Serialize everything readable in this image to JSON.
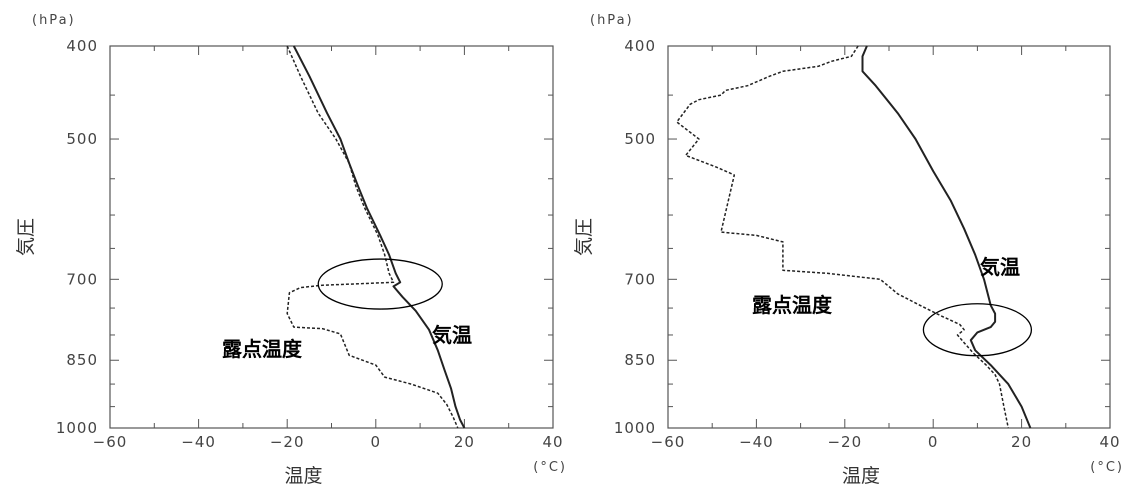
{
  "chart_data": [
    {
      "type": "line",
      "xlabel": "温度",
      "xunit": "(°C)",
      "ylabel": "気圧",
      "yunit": "(hPa)",
      "xlim": [
        -60,
        40
      ],
      "ylim": [
        1000,
        400
      ],
      "x_ticks": [
        -60,
        -40,
        -20,
        0,
        20,
        40
      ],
      "y_ticks": [
        400,
        500,
        700,
        850,
        1000
      ],
      "y_scale": "log",
      "grid": false,
      "annotations": [
        "気温",
        "露点温度"
      ],
      "circle": {
        "center_t": 1,
        "center_p": 708
      },
      "series": [
        {
          "style": "solid",
          "points": [
            [
              -18.5,
              400
            ],
            [
              -15,
              430
            ],
            [
              -11,
              470
            ],
            [
              -8,
              500
            ],
            [
              -6,
              530
            ],
            [
              -4,
              560
            ],
            [
              -2,
              590
            ],
            [
              1,
              630
            ],
            [
              3,
              660
            ],
            [
              4.5,
              690
            ],
            [
              5.5,
              705
            ],
            [
              4,
              712
            ],
            [
              6,
              730
            ],
            [
              9,
              755
            ],
            [
              12,
              790
            ],
            [
              14,
              830
            ],
            [
              15.5,
              870
            ],
            [
              17,
              910
            ],
            [
              18,
              950
            ],
            [
              19,
              980
            ],
            [
              20,
              1000
            ]
          ]
        },
        {
          "style": "dashed",
          "points": [
            [
              -20,
              400
            ],
            [
              -17,
              430
            ],
            [
              -13,
              470
            ],
            [
              -9,
              500
            ],
            [
              -6,
              530
            ],
            [
              -4.5,
              560
            ],
            [
              -2.5,
              590
            ],
            [
              0.5,
              630
            ],
            [
              2,
              660
            ],
            [
              3,
              690
            ],
            [
              4,
              705
            ],
            [
              -5,
              708
            ],
            [
              -12,
              710
            ],
            [
              -17,
              714
            ],
            [
              -19.5,
              723
            ],
            [
              -20,
              760
            ],
            [
              -18.5,
              785
            ],
            [
              -12,
              788
            ],
            [
              -8,
              798
            ],
            [
              -6,
              840
            ],
            [
              0,
              860
            ],
            [
              2,
              885
            ],
            [
              8,
              900
            ],
            [
              14,
              920
            ],
            [
              16,
              945
            ],
            [
              17.5,
              975
            ],
            [
              18.5,
              1000
            ]
          ]
        }
      ]
    },
    {
      "type": "line",
      "xlabel": "温度",
      "xunit": "(°C)",
      "ylabel": "気圧",
      "yunit": "(hPa)",
      "xlim": [
        -60,
        40
      ],
      "ylim": [
        1000,
        400
      ],
      "x_ticks": [
        -60,
        -40,
        -20,
        0,
        20,
        40
      ],
      "y_ticks": [
        400,
        500,
        700,
        850,
        1000
      ],
      "y_scale": "log",
      "grid": false,
      "annotations": [
        "気温",
        "露点温度"
      ],
      "circle": {
        "center_t": 10,
        "center_p": 790
      },
      "series": [
        {
          "style": "solid",
          "points": [
            [
              -15,
              400
            ],
            [
              -16,
              410
            ],
            [
              -16,
              425
            ],
            [
              -13,
              440
            ],
            [
              -8,
              470
            ],
            [
              -4,
              500
            ],
            [
              0,
              540
            ],
            [
              4,
              580
            ],
            [
              7,
              620
            ],
            [
              9.5,
              660
            ],
            [
              11.5,
              700
            ],
            [
              13,
              745
            ],
            [
              14,
              760
            ],
            [
              14,
              775
            ],
            [
              13,
              785
            ],
            [
              10,
              795
            ],
            [
              8.5,
              810
            ],
            [
              9.5,
              830
            ],
            [
              13,
              860
            ],
            [
              17,
              900
            ],
            [
              20,
              950
            ],
            [
              22,
              1000
            ]
          ]
        },
        {
          "style": "dashed",
          "points": [
            [
              -17,
              400
            ],
            [
              -18.5,
              410
            ],
            [
              -23,
              415
            ],
            [
              -26,
              420
            ],
            [
              -34,
              425
            ],
            [
              -37,
              430
            ],
            [
              -42,
              440
            ],
            [
              -47,
              445
            ],
            [
              -48,
              450
            ],
            [
              -53,
              455
            ],
            [
              -55,
              460
            ],
            [
              -58,
              480
            ],
            [
              -53,
              500
            ],
            [
              -56,
              520
            ],
            [
              -49,
              535
            ],
            [
              -45,
              545
            ],
            [
              -48,
              625
            ],
            [
              -40,
              630
            ],
            [
              -34,
              640
            ],
            [
              -34,
              685
            ],
            [
              -24,
              690
            ],
            [
              -12,
              700
            ],
            [
              -8,
              725
            ],
            [
              -3,
              745
            ],
            [
              2,
              765
            ],
            [
              6,
              780
            ],
            [
              7,
              790
            ],
            [
              5.5,
              800
            ],
            [
              7,
              815
            ],
            [
              9,
              835
            ],
            [
              12,
              860
            ],
            [
              14,
              880
            ],
            [
              15,
              900
            ],
            [
              16,
              950
            ],
            [
              17,
              1000
            ]
          ]
        }
      ]
    }
  ]
}
